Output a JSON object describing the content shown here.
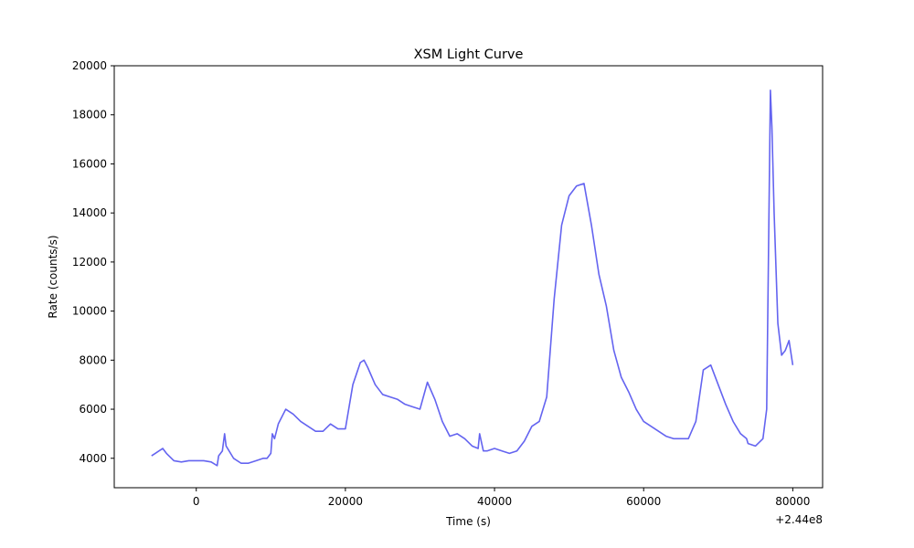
{
  "chart_data": {
    "type": "line",
    "title": "XSM Light Curve",
    "xlabel": "Time (s)",
    "ylabel": "Rate (counts/s)",
    "x_offset_label": "+2.44e8",
    "xlim": [
      -11000,
      84000
    ],
    "ylim": [
      2800,
      20000
    ],
    "x_ticks": [
      0,
      20000,
      40000,
      60000,
      80000
    ],
    "y_ticks": [
      4000,
      6000,
      8000,
      10000,
      12000,
      14000,
      16000,
      18000,
      20000
    ],
    "grid": false,
    "line_color": "#6464f0",
    "series": [
      {
        "x": [
          -6000,
          -5500,
          -5000,
          -4500,
          -4000,
          -3000,
          -2000,
          -1000,
          0,
          1000,
          2000,
          2800,
          3000,
          3500,
          3800,
          4000,
          5000,
          6000,
          7000,
          8000,
          9000,
          9500,
          10000,
          10200,
          10500,
          11000,
          12000,
          13000,
          14000,
          15000,
          16000,
          17000,
          18000,
          19000,
          20000,
          21000,
          22000,
          22500,
          23000,
          24000,
          25000,
          26000,
          27000,
          28000,
          29000,
          30000,
          31000,
          32000,
          33000,
          34000,
          35000,
          36000,
          37000,
          37800,
          38000,
          38500,
          39000,
          40000,
          41000,
          42000,
          43000,
          44000,
          45000,
          46000,
          47000,
          48000,
          49000,
          50000,
          51000,
          52000,
          53000,
          54000,
          55000,
          56000,
          57000,
          58000,
          59000,
          60000,
          61000,
          62000,
          63000,
          64000,
          65000,
          66000,
          67000,
          68000,
          69000,
          70000,
          71000,
          72000,
          73000,
          73800,
          74000,
          75000,
          76000,
          76500,
          77000,
          77200,
          77500,
          78000,
          78500,
          79000,
          79500,
          80000
        ],
        "y": [
          4100,
          4200,
          4300,
          4400,
          4200,
          3900,
          3850,
          3900,
          3900,
          3900,
          3850,
          3700,
          4100,
          4300,
          5000,
          4500,
          4000,
          3800,
          3800,
          3900,
          4000,
          4000,
          4200,
          5000,
          4800,
          5400,
          6000,
          5800,
          5500,
          5300,
          5100,
          5100,
          5400,
          5200,
          5200,
          7000,
          7900,
          8000,
          7700,
          7000,
          6600,
          6500,
          6400,
          6200,
          6100,
          6000,
          7100,
          6400,
          5500,
          4900,
          5000,
          4800,
          4500,
          4400,
          5000,
          4300,
          4300,
          4400,
          4300,
          4200,
          4300,
          4700,
          5300,
          5500,
          6500,
          10500,
          13500,
          14700,
          15100,
          15200,
          13500,
          11500,
          10200,
          8400,
          7300,
          6700,
          6000,
          5500,
          5300,
          5100,
          4900,
          4800,
          4800,
          4800,
          5500,
          7600,
          7800,
          7000,
          6200,
          5500,
          5000,
          4800,
          4600,
          4500,
          4800,
          6000,
          19000,
          17500,
          14000,
          9500,
          8200,
          8400,
          8800,
          7800
        ]
      }
    ]
  }
}
